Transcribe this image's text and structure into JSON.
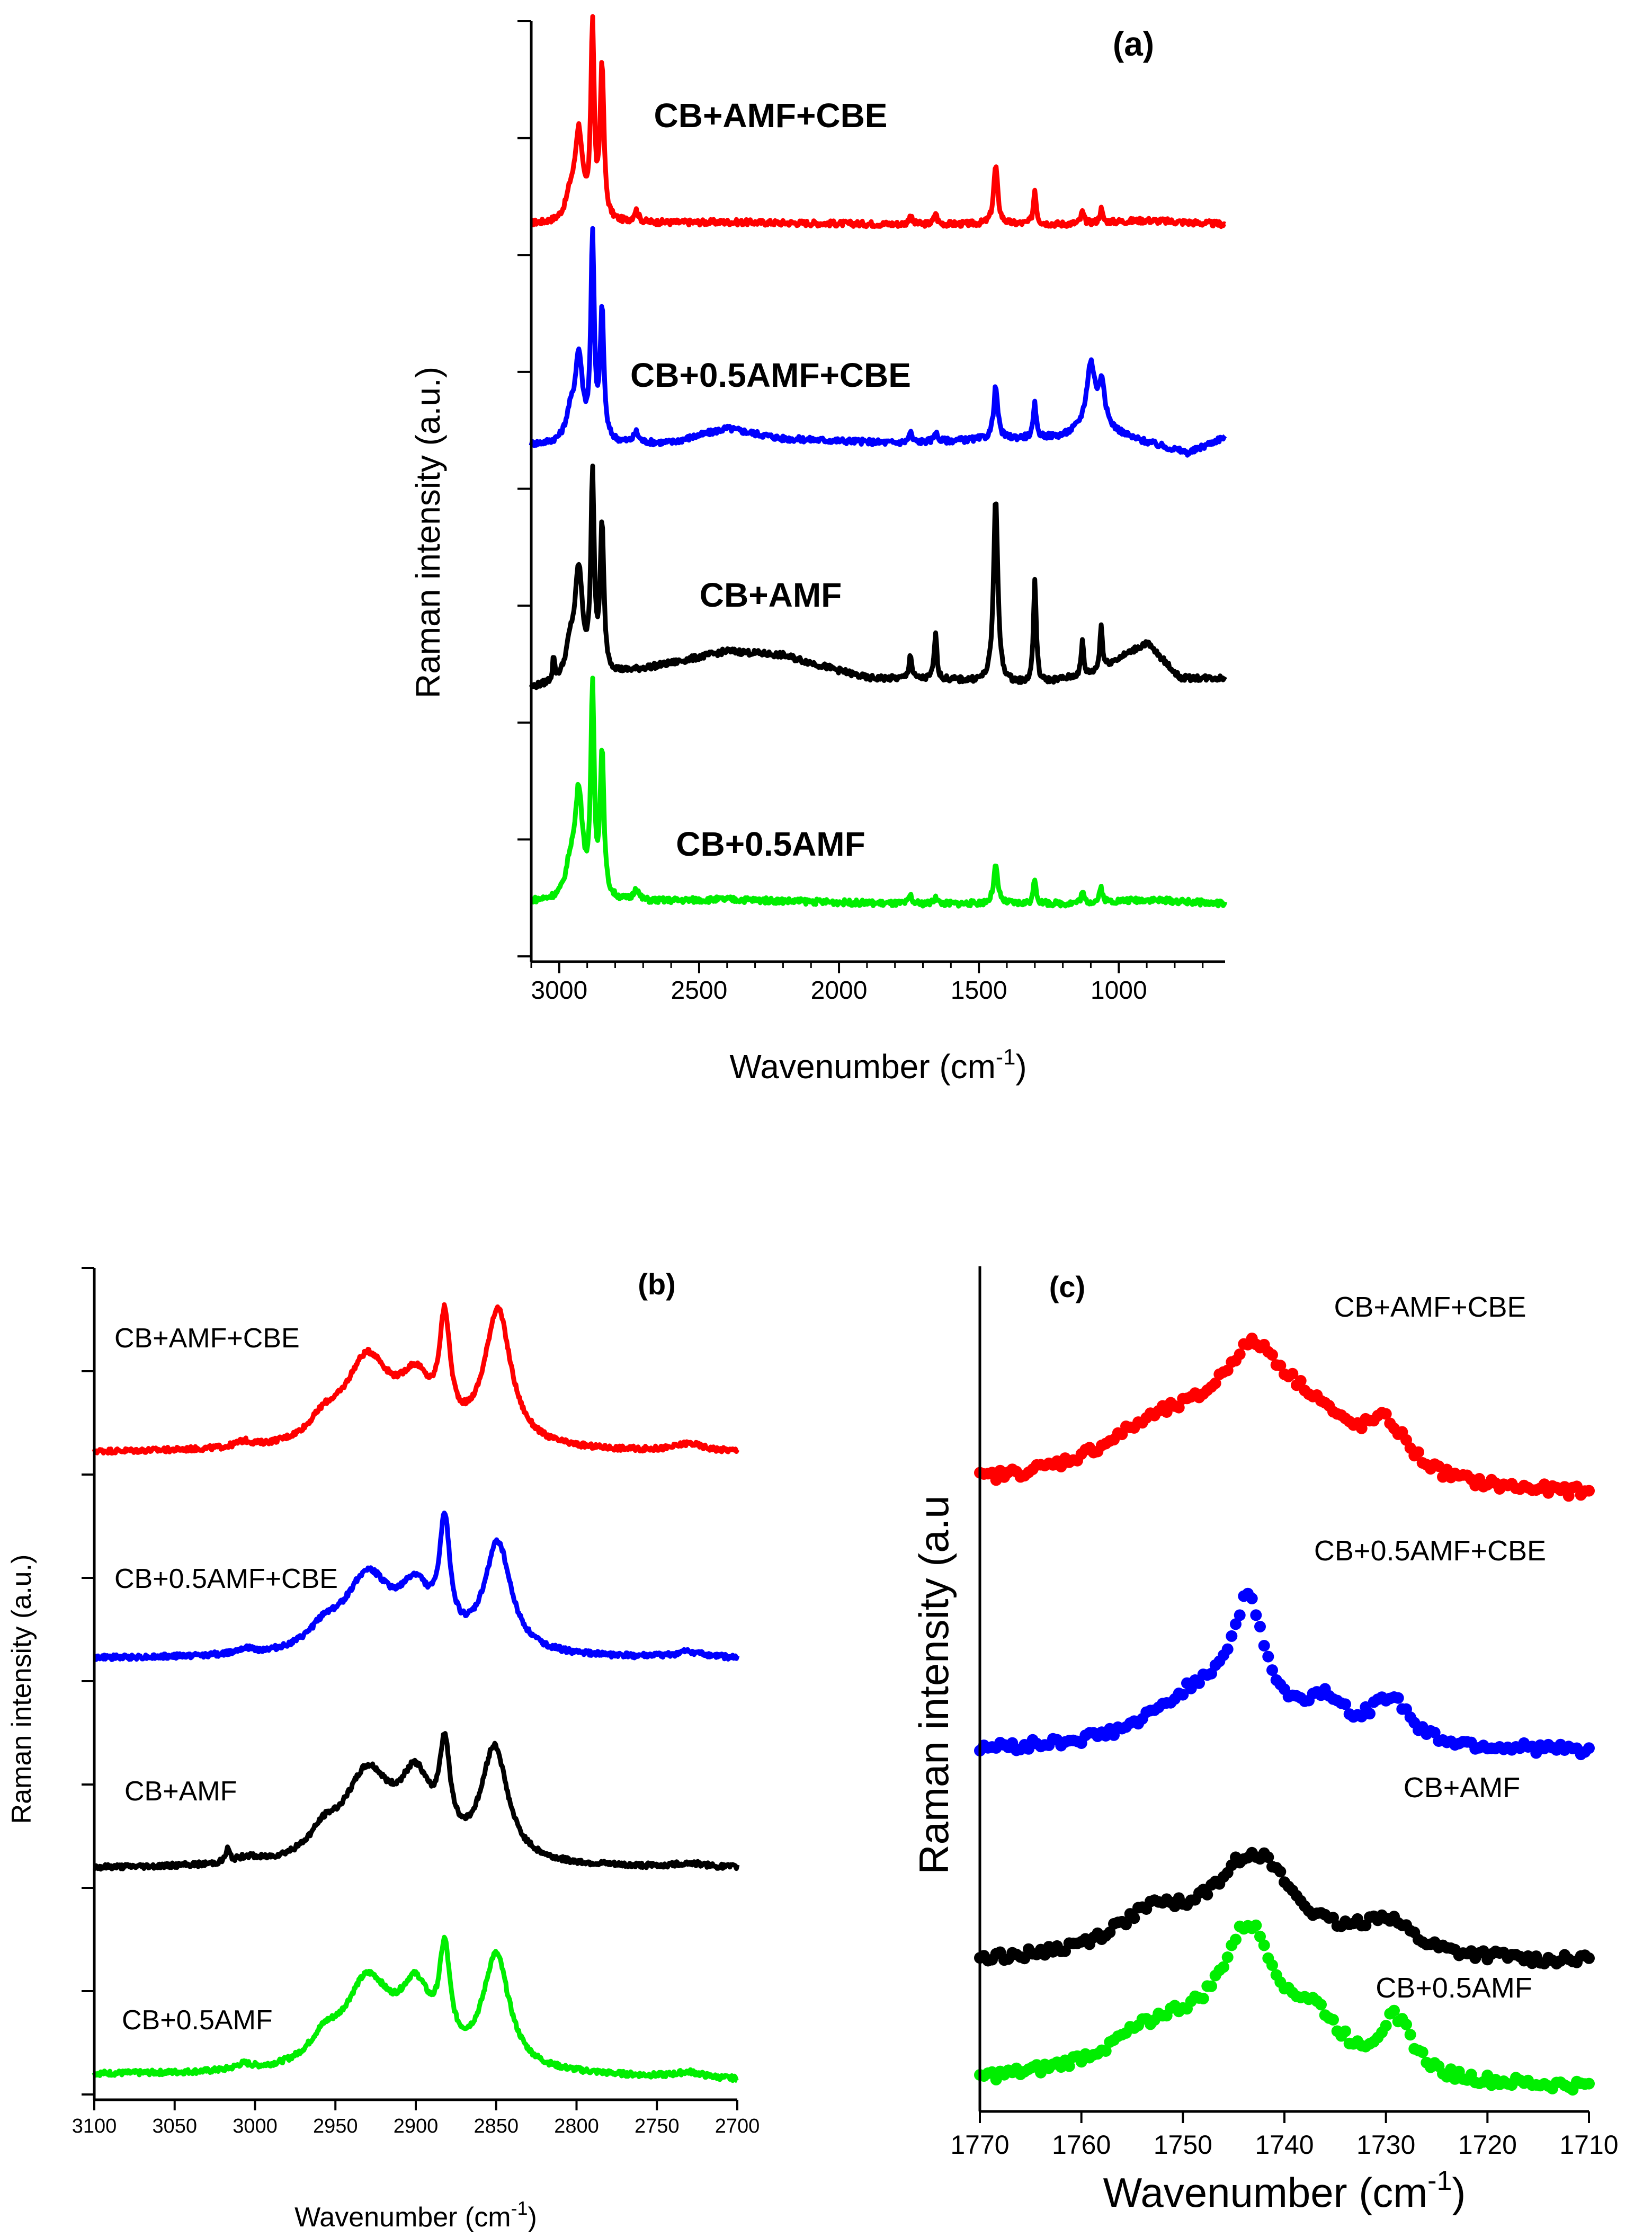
{
  "chart_data": [
    {
      "panel": "a",
      "type": "line",
      "title": "(a)",
      "xlabel": "Wavenumber (cm",
      "xlabel_sup": "-1",
      "xlabel_end": ")",
      "ylabel": "Raman intensity (a.u.)",
      "xlim": [
        3100,
        620
      ],
      "xticks": [
        3000,
        2500,
        2000,
        1500,
        1000
      ],
      "xtick_labels": [
        "3000",
        "2500",
        "2000",
        "1500",
        "1000"
      ],
      "series": [
        {
          "name": "CB+AMF+CBE",
          "label": "CB+AMF+CBE",
          "color": "#ff0000",
          "baseline": 0.78,
          "scale": 0.205,
          "bg": [
            [
              3050,
              0.02
            ],
            [
              2400,
              0.03
            ],
            [
              1800,
              0.02
            ],
            [
              1200,
              0.02
            ],
            [
              900,
              0.04
            ],
            [
              620,
              0.02
            ]
          ],
          "peaks": [
            [
              2960,
              0.12,
              20
            ],
            [
              2930,
              0.45,
              16
            ],
            [
              2881,
              1.0,
              7
            ],
            [
              2847,
              0.8,
              8
            ],
            [
              2725,
              0.06,
              10
            ],
            [
              1745,
              0.05,
              6
            ],
            [
              1655,
              0.06,
              6
            ],
            [
              1440,
              0.3,
              9
            ],
            [
              1300,
              0.18,
              6
            ],
            [
              1130,
              0.06,
              6
            ],
            [
              1063,
              0.07,
              6
            ]
          ]
        },
        {
          "name": "CB+0.5AMF+CBE",
          "label": "CB+0.5AMF+CBE",
          "color": "#0000ff",
          "baseline": 0.545,
          "scale": 0.22,
          "bg": [
            [
              3050,
              0.02
            ],
            [
              2600,
              0.03
            ],
            [
              2400,
              0.1
            ],
            [
              2200,
              0.05
            ],
            [
              1800,
              0.03
            ],
            [
              1200,
              0.06
            ],
            [
              1080,
              0.12
            ],
            [
              950,
              0.05
            ],
            [
              750,
              -0.02
            ],
            [
              620,
              0.06
            ]
          ],
          "peaks": [
            [
              2960,
              0.12,
              20
            ],
            [
              2930,
              0.4,
              16
            ],
            [
              2881,
              0.98,
              7
            ],
            [
              2847,
              0.62,
              8
            ],
            [
              2725,
              0.05,
              10
            ],
            [
              1745,
              0.05,
              6
            ],
            [
              1655,
              0.05,
              6
            ],
            [
              1440,
              0.25,
              9
            ],
            [
              1300,
              0.16,
              6
            ],
            [
              1100,
              0.3,
              18
            ],
            [
              1060,
              0.2,
              12
            ]
          ]
        },
        {
          "name": "CB+AMF",
          "label": "CB+AMF",
          "color": "#000000",
          "baseline": 0.295,
          "scale": 0.22,
          "bg": [
            [
              3100,
              -0.02
            ],
            [
              2900,
              0.02
            ],
            [
              2600,
              0.1
            ],
            [
              2400,
              0.16
            ],
            [
              2200,
              0.14
            ],
            [
              1900,
              0.03
            ],
            [
              1600,
              0.02
            ],
            [
              1300,
              0.0
            ],
            [
              1100,
              0.05
            ],
            [
              900,
              0.2
            ],
            [
              780,
              0.03
            ],
            [
              620,
              0.03
            ]
          ],
          "peaks": [
            [
              3020,
              0.12,
              4
            ],
            [
              2960,
              0.15,
              20
            ],
            [
              2930,
              0.5,
              16
            ],
            [
              2881,
              0.95,
              7
            ],
            [
              2847,
              0.7,
              8
            ],
            [
              1745,
              0.12,
              6
            ],
            [
              1655,
              0.22,
              6
            ],
            [
              1440,
              0.9,
              9
            ],
            [
              1300,
              0.5,
              6
            ],
            [
              1130,
              0.17,
              5
            ],
            [
              1063,
              0.22,
              5
            ]
          ]
        },
        {
          "name": "CB+0.5AMF",
          "label": "CB+0.5AMF",
          "color": "#00ee00",
          "baseline": 0.055,
          "scale": 0.22,
          "bg": [
            [
              3050,
              0.04
            ],
            [
              2700,
              0.04
            ],
            [
              2400,
              0.05
            ],
            [
              1800,
              0.03
            ],
            [
              1200,
              0.03
            ],
            [
              900,
              0.05
            ],
            [
              620,
              0.03
            ]
          ],
          "peaks": [
            [
              2960,
              0.15,
              20
            ],
            [
              2930,
              0.5,
              16
            ],
            [
              2881,
              1.0,
              7
            ],
            [
              2847,
              0.7,
              8
            ],
            [
              2725,
              0.06,
              10
            ],
            [
              1745,
              0.04,
              6
            ],
            [
              1655,
              0.04,
              6
            ],
            [
              1440,
              0.18,
              9
            ],
            [
              1300,
              0.12,
              6
            ],
            [
              1130,
              0.05,
              6
            ],
            [
              1063,
              0.07,
              6
            ]
          ]
        }
      ]
    },
    {
      "panel": "b",
      "type": "line",
      "title": "(b)",
      "xlabel": "Wavenumber (cm",
      "xlabel_sup": "-1",
      "xlabel_end": ")",
      "ylabel": "Raman intensity (a.u.)",
      "xlim": [
        3100,
        2700
      ],
      "xticks": [
        3100,
        3050,
        3000,
        2950,
        2900,
        2850,
        2800,
        2750,
        2700
      ],
      "xtick_labels": [
        "3100",
        "3050",
        "3000",
        "2950",
        "2900",
        "2850",
        "2800",
        "2750",
        "2700"
      ],
      "series": [
        {
          "name": "CB+AMF+CBE",
          "label": "CB+AMF+CBE",
          "color": "#ff0000",
          "baseline": 0.778,
          "scale": 0.22,
          "bg": [
            [
              3100,
              0.0
            ],
            [
              2700,
              0.0
            ]
          ],
          "peaks": [
            [
              3007,
              0.03,
              6
            ],
            [
              2957,
              0.1,
              11
            ],
            [
              2930,
              0.48,
              18
            ],
            [
              2900,
              0.3,
              12
            ],
            [
              2882,
              0.58,
              4
            ],
            [
              2849,
              0.74,
              10
            ],
            [
              2730,
              0.04,
              10
            ]
          ]
        },
        {
          "name": "CB+0.5AMF+CBE",
          "label": "CB+0.5AMF+CBE",
          "color": "#0000ff",
          "baseline": 0.53,
          "scale": 0.22,
          "bg": [
            [
              3100,
              0.0
            ],
            [
              2700,
              0.0
            ]
          ],
          "peaks": [
            [
              3007,
              0.03,
              6
            ],
            [
              2957,
              0.1,
              11
            ],
            [
              2930,
              0.42,
              18
            ],
            [
              2900,
              0.3,
              12
            ],
            [
              2882,
              0.6,
              4
            ],
            [
              2849,
              0.6,
              10
            ],
            [
              2730,
              0.03,
              10
            ]
          ]
        },
        {
          "name": "CB+AMF",
          "label": "CB+AMF",
          "color": "#000000",
          "baseline": 0.278,
          "scale": 0.22,
          "bg": [
            [
              3100,
              0.0
            ],
            [
              2700,
              0.0
            ]
          ],
          "peaks": [
            [
              3017,
              0.07,
              1.5
            ],
            [
              3005,
              0.03,
              8
            ],
            [
              2957,
              0.12,
              11
            ],
            [
              2930,
              0.48,
              18
            ],
            [
              2900,
              0.4,
              12
            ],
            [
              2882,
              0.5,
              4
            ],
            [
              2851,
              0.62,
              10
            ],
            [
              2730,
              0.02,
              10
            ]
          ]
        },
        {
          "name": "CB+0.5AMF",
          "label": "CB+0.5AMF",
          "color": "#00ee00",
          "baseline": 0.03,
          "scale": 0.22,
          "bg": [
            [
              3100,
              0.0
            ],
            [
              2800,
              -0.01
            ],
            [
              2700,
              -0.03
            ]
          ],
          "peaks": [
            [
              3007,
              0.03,
              6
            ],
            [
              2957,
              0.12,
              11
            ],
            [
              2930,
              0.48,
              18
            ],
            [
              2900,
              0.38,
              12
            ],
            [
              2882,
              0.52,
              4
            ],
            [
              2850,
              0.62,
              10
            ],
            [
              2730,
              0.03,
              10
            ]
          ]
        }
      ]
    },
    {
      "panel": "c",
      "type": "scatter",
      "title": "(c)",
      "xlabel": "Wavenumber (cm",
      "xlabel_sup": "-1",
      "xlabel_end": ")",
      "ylabel": "Raman intensity (a.u",
      "xlim": [
        1770,
        1710
      ],
      "xticks": [
        1770,
        1760,
        1750,
        1740,
        1730,
        1720,
        1710
      ],
      "xtick_labels": [
        "1770",
        "1760",
        "1750",
        "1740",
        "1730",
        "1720",
        "1710"
      ],
      "series": [
        {
          "name": "CB+AMF+CBE",
          "label": "CB+AMF+CBE",
          "color": "#ff0000",
          "baseline": 0.735,
          "scale": 0.22,
          "bg": [
            [
              1770,
              0.0
            ],
            [
              1710,
              -0.04
            ]
          ],
          "peaks": [
            [
              1743,
              0.6,
              4.5
            ],
            [
              1752,
              0.3,
              8
            ],
            [
              1737,
              0.22,
              4
            ],
            [
              1730,
              0.26,
              2.8
            ]
          ]
        },
        {
          "name": "CB+0.5AMF+CBE",
          "label": "CB+0.5AMF+CBE",
          "color": "#0000ff",
          "baseline": 0.425,
          "scale": 0.22,
          "bg": [
            [
              1770,
              0.0
            ],
            [
              1710,
              0.0
            ]
          ],
          "peaks": [
            [
              1743.5,
              0.62,
              2
            ],
            [
              1748,
              0.3,
              6
            ],
            [
              1736,
              0.2,
              2.5
            ],
            [
              1729.5,
              0.24,
              2.2
            ]
          ]
        },
        {
          "name": "CB+AMF",
          "label": "CB+AMF",
          "color": "#000000",
          "baseline": 0.175,
          "scale": 0.22,
          "bg": [
            [
              1770,
              0.0
            ],
            [
              1710,
              0.0
            ]
          ],
          "peaks": [
            [
              1743,
              0.55,
              5
            ],
            [
              1753,
              0.2,
              5
            ],
            [
              1730,
              0.18,
              3
            ]
          ]
        },
        {
          "name": "CB+0.5AMF",
          "label": "CB+0.5AMF",
          "color": "#00ee00",
          "baseline": 0.03,
          "scale": 0.22,
          "bg": [
            [
              1770,
              0.0
            ],
            [
              1710,
              -0.02
            ]
          ],
          "peaks": [
            [
              1743.5,
              0.72,
              3.5
            ],
            [
              1752,
              0.28,
              7
            ],
            [
              1737,
              0.24,
              3
            ],
            [
              1729,
              0.3,
              2
            ]
          ]
        }
      ]
    }
  ]
}
